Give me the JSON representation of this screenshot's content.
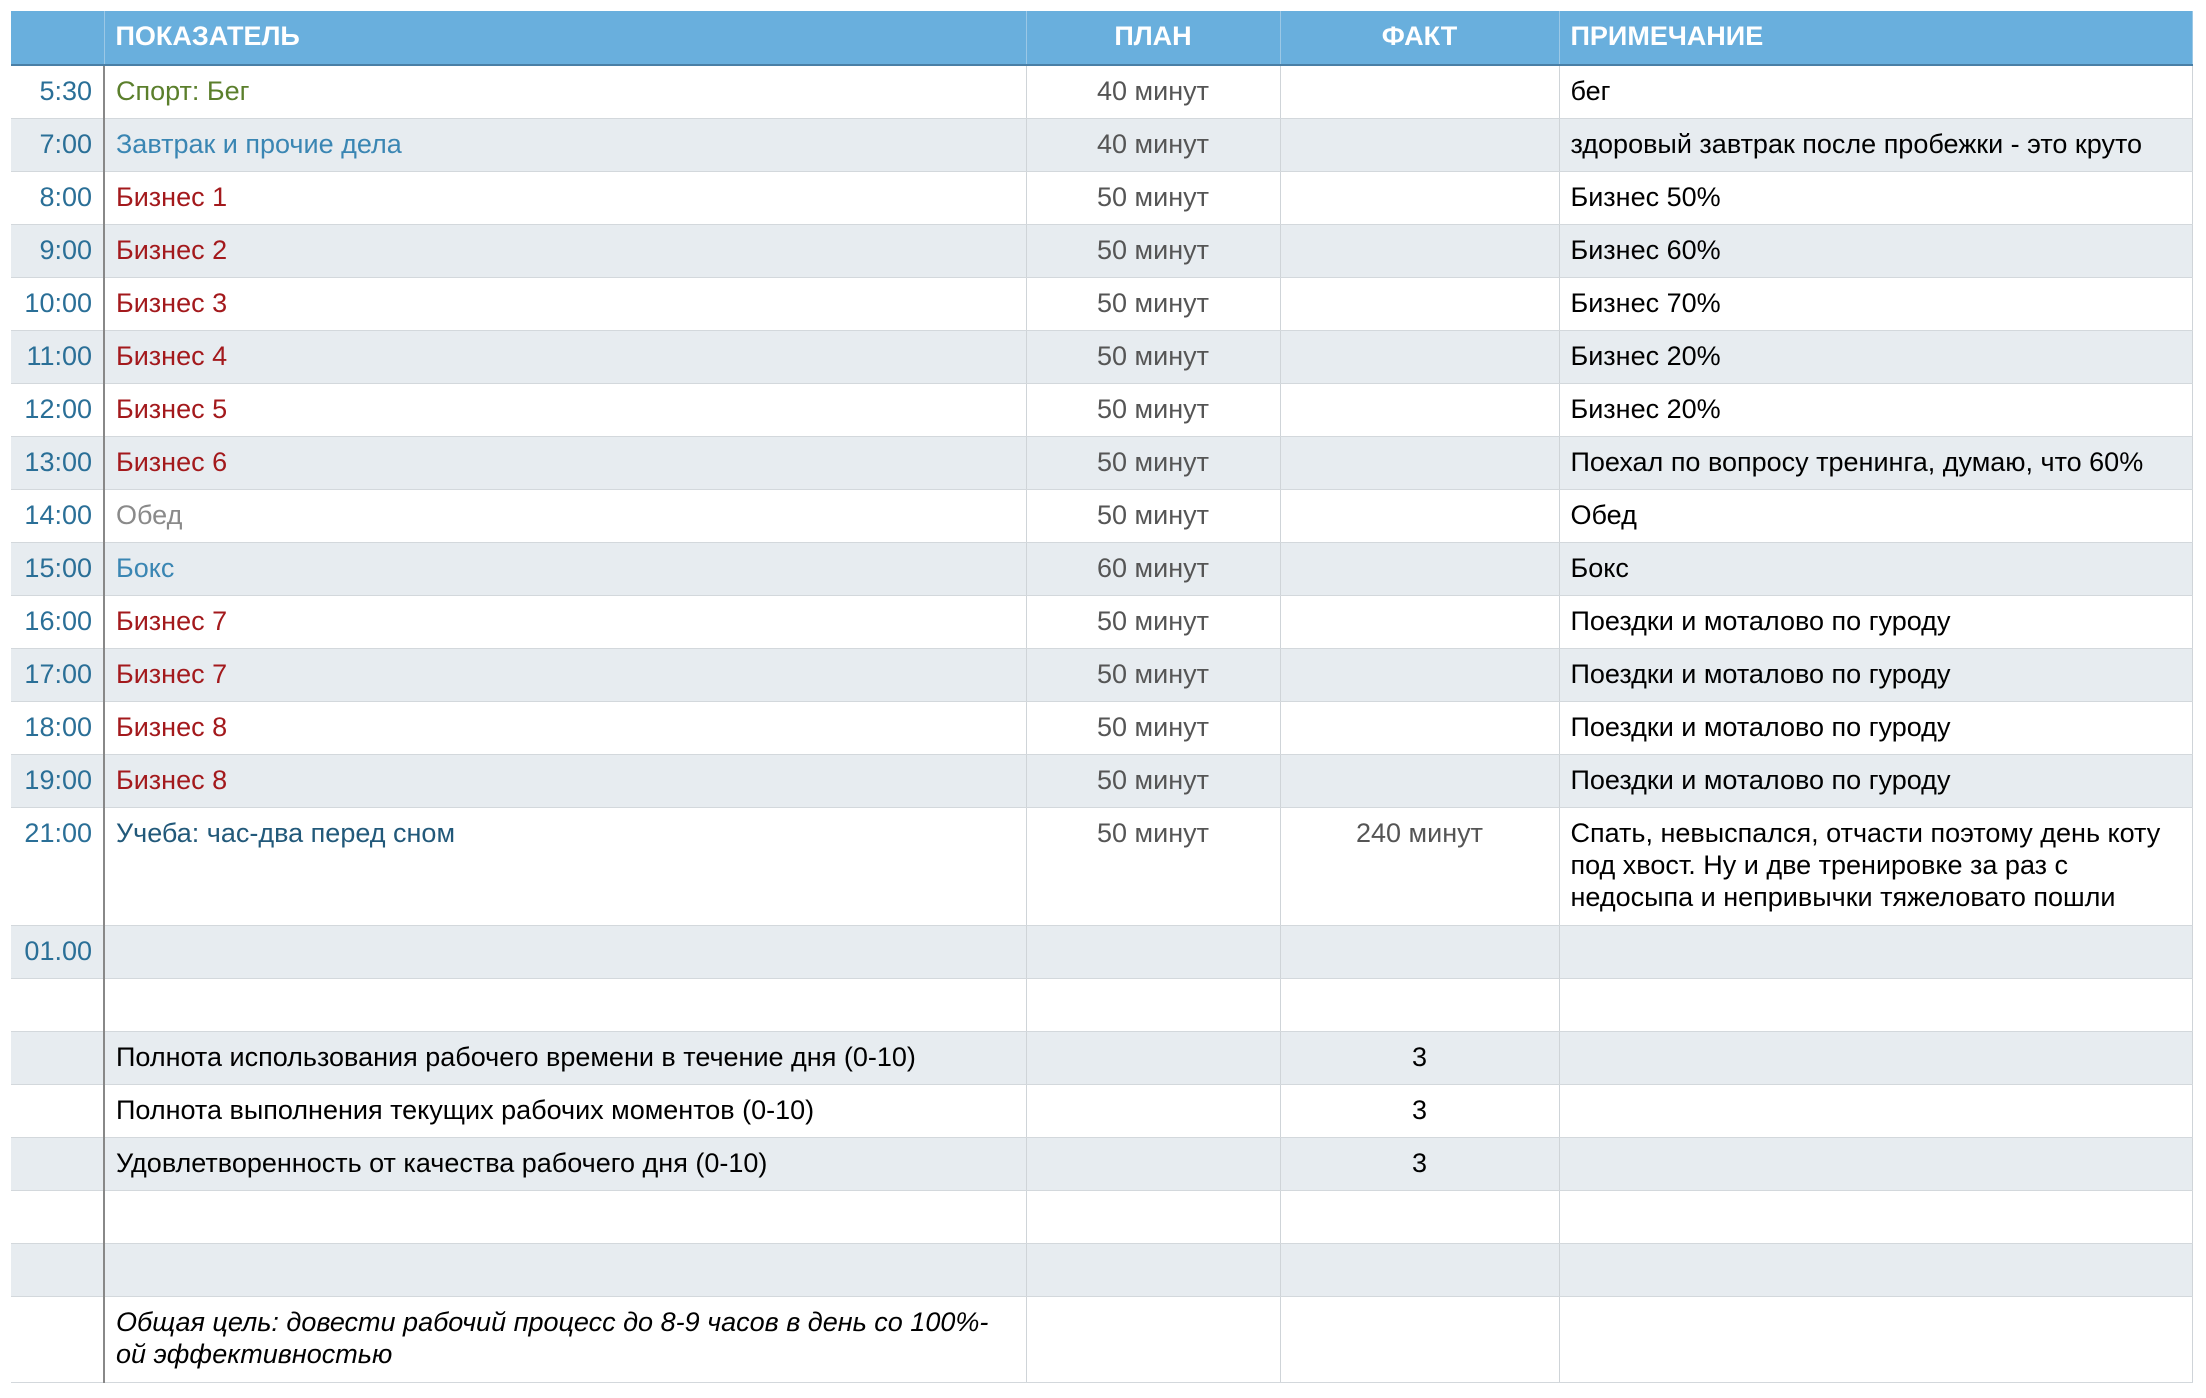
{
  "table": {
    "header": {
      "item": "ПОКАЗАТЕЛЬ",
      "plan": "ПЛАН",
      "fact": "ФАКТ",
      "note": "ПРИМЕЧАНИЕ"
    },
    "rows": [
      {
        "time": "5:30",
        "item": "Спорт: Бег",
        "plan": "40 минут",
        "note": "бег",
        "color": "#5b7f2c"
      },
      {
        "time": "7:00",
        "item": "Завтрак и прочие дела",
        "plan": "40 минут",
        "note": "здоровый завтрак после пробежки - это круто",
        "color": "#3a86b3"
      },
      {
        "time": "8:00",
        "item": "Бизнес 1",
        "plan": "50 минут",
        "note": "Бизнес 50%",
        "color": "#a3191c"
      },
      {
        "time": "9:00",
        "item": "Бизнес 2",
        "plan": "50 минут",
        "note": "Бизнес 60%",
        "color": "#a3191c"
      },
      {
        "time": "10:00",
        "item": "Бизнес 3",
        "plan": "50 минут",
        "note": "Бизнес 70%",
        "color": "#a3191c"
      },
      {
        "time": "11:00",
        "item": "Бизнес 4",
        "plan": "50 минут",
        "note": "Бизнес 20%",
        "color": "#a3191c"
      },
      {
        "time": "12:00",
        "item": "Бизнес 5",
        "plan": "50 минут",
        "note": "Бизнес 20%",
        "color": "#a3191c"
      },
      {
        "time": "13:00",
        "item": "Бизнес 6",
        "plan": "50 минут",
        "note": "Поехал по вопросу тренинга, думаю, что 60%",
        "color": "#a3191c"
      },
      {
        "time": "14:00",
        "item": "Обед",
        "plan": "50 минут",
        "note": "Обед",
        "color": "#8a8a8a"
      },
      {
        "time": "15:00",
        "item": "Бокс",
        "plan": "60 минут",
        "note": "Бокс",
        "color": "#3a86b3"
      },
      {
        "time": "16:00",
        "item": "Бизнес 7",
        "plan": "50 минут",
        "note": "Поездки и моталово по гуроду",
        "color": "#a3191c"
      },
      {
        "time": "17:00",
        "item": "Бизнес 7",
        "plan": "50 минут",
        "note": "Поездки и моталово по гуроду",
        "color": "#a3191c"
      },
      {
        "time": "18:00",
        "item": "Бизнес 8",
        "plan": "50 минут",
        "note": "Поездки и моталово по гуроду",
        "color": "#a3191c"
      },
      {
        "time": "19:00",
        "item": "Бизнес 8",
        "plan": "50 минут",
        "note": "Поездки и моталово по гуроду",
        "color": "#a3191c"
      },
      {
        "time": "21:00",
        "item": "Учеба: час-два перед сном",
        "plan": "50 минут",
        "fact": "240 минут",
        "note": "Спать, невыспался, отчасти поэтому день коту под хвост. Ну и две тренировке за раз с недосыпа и непривычки тяжеловато пошли",
        "color": "#22597a"
      },
      {
        "time": "01.00"
      },
      {},
      {
        "item": "Полнота использования рабочего времени в течение дня (0-10)",
        "fact": 3
      },
      {
        "item": "Полнота выполнения текущих рабочих моментов (0-10)",
        "fact": 3
      },
      {
        "item": "Удовлетворенность от качества рабочего дня (0-10)",
        "fact": 3
      },
      {},
      {},
      {
        "item": "Общая цель: довести рабочий процесс до 8-9 часов в день со 100%-ой эффективностью",
        "italic": true
      }
    ]
  }
}
